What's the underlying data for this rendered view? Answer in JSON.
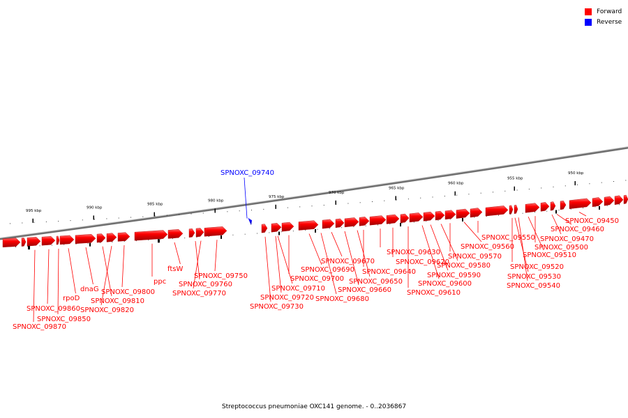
{
  "caption": "Streptococcus pneumoniae OXC141 genome. - 0..2036867",
  "legend": [
    {
      "label": "Forward",
      "color": "#ff0000"
    },
    {
      "label": "Reverse",
      "color": "#0000ff"
    }
  ],
  "colors": {
    "forward": "#ff0000",
    "reverse": "#0000ff",
    "backbone": "#808080"
  },
  "scale_labels": [
    "995 kbp",
    "990 kbp",
    "985 kbp",
    "980 kbp",
    "975 kbp",
    "970 kbp",
    "965 kbp",
    "960 kbp",
    "955 kbp",
    "950 kbp"
  ],
  "genes": [
    {
      "label": "SPNOXC_09870",
      "strand": "forward"
    },
    {
      "label": "SPNOXC_09860",
      "strand": "forward"
    },
    {
      "label": "SPNOXC_09850",
      "strand": "forward"
    },
    {
      "label": "rpoD",
      "strand": "forward"
    },
    {
      "label": "dnaG",
      "strand": "forward"
    },
    {
      "label": "SPNOXC_09820",
      "strand": "forward"
    },
    {
      "label": "SPNOXC_09810",
      "strand": "forward"
    },
    {
      "label": "SPNOXC_09800",
      "strand": "forward"
    },
    {
      "label": "ppc",
      "strand": "forward"
    },
    {
      "label": "ftsW",
      "strand": "forward"
    },
    {
      "label": "SPNOXC_09770",
      "strand": "forward"
    },
    {
      "label": "SPNOXC_09760",
      "strand": "forward"
    },
    {
      "label": "SPNOXC_09750",
      "strand": "forward"
    },
    {
      "label": "SPNOXC_09740",
      "strand": "reverse"
    },
    {
      "label": "SPNOXC_09730",
      "strand": "forward"
    },
    {
      "label": "SPNOXC_09720",
      "strand": "forward"
    },
    {
      "label": "SPNOXC_09710",
      "strand": "forward"
    },
    {
      "label": "SPNOXC_09700",
      "strand": "forward"
    },
    {
      "label": "SPNOXC_09690",
      "strand": "forward"
    },
    {
      "label": "SPNOXC_09680",
      "strand": "forward"
    },
    {
      "label": "SPNOXC_09670",
      "strand": "forward"
    },
    {
      "label": "SPNOXC_09660",
      "strand": "forward"
    },
    {
      "label": "SPNOXC_09650",
      "strand": "forward"
    },
    {
      "label": "SPNOXC_09640",
      "strand": "forward"
    },
    {
      "label": "SPNOXC_09630",
      "strand": "forward"
    },
    {
      "label": "SPNOXC_09620",
      "strand": "forward"
    },
    {
      "label": "SPNOXC_09610",
      "strand": "forward"
    },
    {
      "label": "SPNOXC_09600",
      "strand": "forward"
    },
    {
      "label": "SPNOXC_09590",
      "strand": "forward"
    },
    {
      "label": "SPNOXC_09580",
      "strand": "forward"
    },
    {
      "label": "SPNOXC_09570",
      "strand": "forward"
    },
    {
      "label": "SPNOXC_09560",
      "strand": "forward"
    },
    {
      "label": "SPNOXC_09550",
      "strand": "forward"
    },
    {
      "label": "SPNOXC_09540",
      "strand": "forward"
    },
    {
      "label": "SPNOXC_09530",
      "strand": "forward"
    },
    {
      "label": "SPNOXC_09520",
      "strand": "forward"
    },
    {
      "label": "SPNOXC_09510",
      "strand": "forward"
    },
    {
      "label": "SPNOXC_09500",
      "strand": "forward"
    },
    {
      "label": "SPNOXC_09470",
      "strand": "forward"
    },
    {
      "label": "SPNOXC_09460",
      "strand": "forward"
    },
    {
      "label": "SPNOXC_09450",
      "strand": "forward"
    }
  ]
}
